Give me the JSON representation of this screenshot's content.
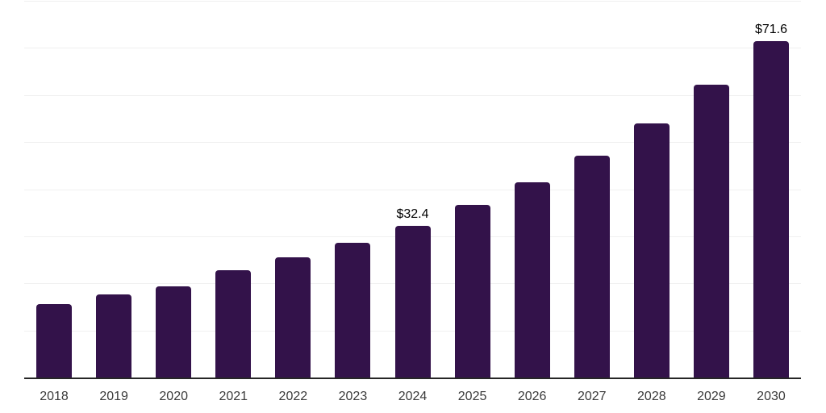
{
  "chart_data": {
    "type": "bar",
    "title": "",
    "xlabel": "",
    "ylabel": "",
    "categories": [
      "2018",
      "2019",
      "2020",
      "2021",
      "2022",
      "2023",
      "2024",
      "2025",
      "2026",
      "2027",
      "2028",
      "2029",
      "2030"
    ],
    "values": [
      15.8,
      17.8,
      19.6,
      22.9,
      25.7,
      28.8,
      32.4,
      36.9,
      41.7,
      47.3,
      54.2,
      62.4,
      71.6
    ],
    "bar_labels": [
      "",
      "",
      "",
      "",
      "",
      "",
      "$32.4",
      "",
      "",
      "",
      "",
      "",
      "$71.6"
    ],
    "ylim": [
      0,
      80
    ],
    "grid_step": 10,
    "grid": "horizontal gridlines only, no y-axis tick labels",
    "legend": "none",
    "colors": {
      "bar": "#33124a",
      "axis_line": "#262626",
      "gridline": "#f0f0f0",
      "value_label": "#000000",
      "tick_label": "#3a3a3a",
      "background": "#ffffff"
    }
  }
}
